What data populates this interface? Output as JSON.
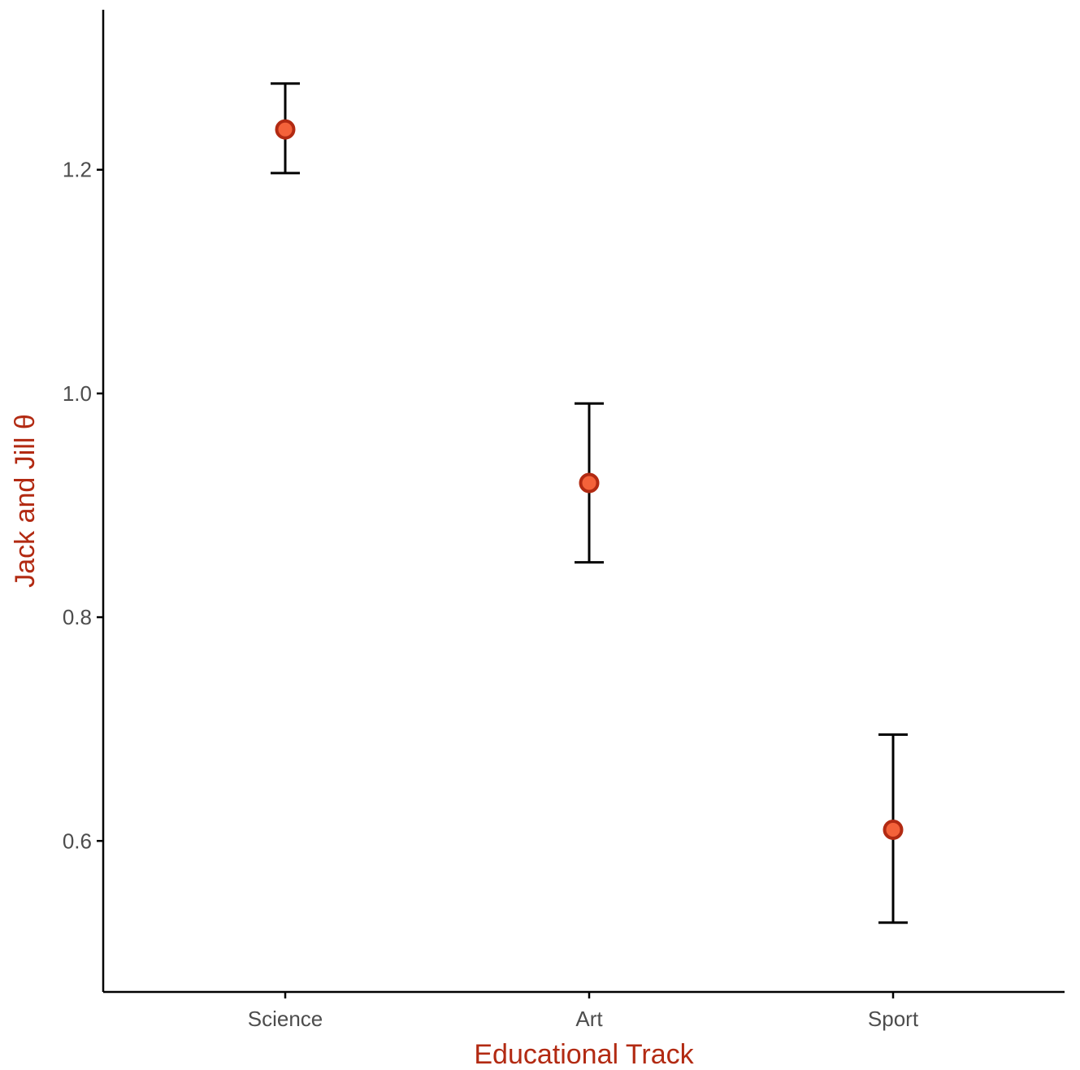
{
  "chart_data": {
    "type": "scatter",
    "xlabel": "Educational Track",
    "ylabel": "Jack and Jill θ",
    "categories": [
      "Science",
      "Art",
      "Sport"
    ],
    "values": [
      1.236,
      0.92,
      0.61
    ],
    "error_lower": [
      1.197,
      0.849,
      0.527
    ],
    "error_upper": [
      1.277,
      0.991,
      0.695
    ],
    "ylim": [
      0.465,
      1.343
    ],
    "yticks": [
      0.6,
      0.8,
      1.0,
      1.2
    ],
    "ytick_labels": [
      "0.6",
      "0.8",
      "1.0",
      "1.2"
    ],
    "grid": false,
    "legend": "none",
    "colors": {
      "point_fill": "#f4623a",
      "point_stroke": "#b22a12",
      "axis_title": "#b22a12",
      "tick_label": "#4d4d4d",
      "axis": "#000000"
    }
  }
}
